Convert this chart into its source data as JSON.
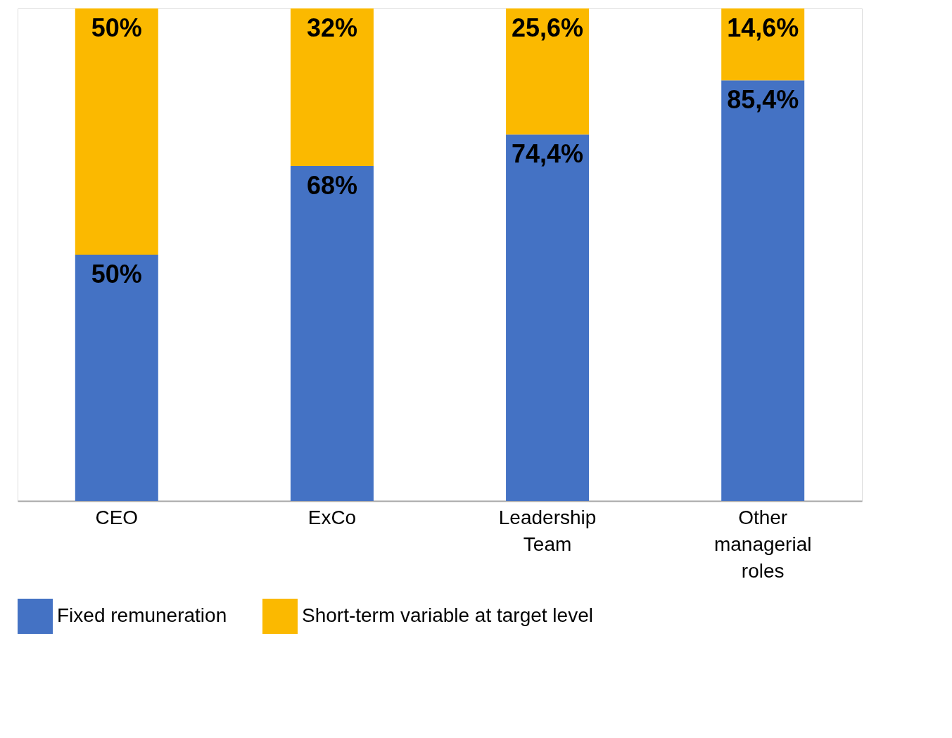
{
  "chart_data": {
    "type": "bar",
    "stacked": true,
    "categories": [
      "CEO",
      "ExCo",
      "Leadership Team",
      "Other managerial roles"
    ],
    "series": [
      {
        "name": "Fixed remuneration",
        "color": "#4472c4",
        "values": [
          50,
          68,
          74.4,
          85.4
        ],
        "value_labels": [
          "50%",
          "68%",
          "74,4%",
          "85,4%"
        ]
      },
      {
        "name": "Short-term variable at target level",
        "color": "#fbb900",
        "values": [
          50,
          32,
          25.6,
          14.6
        ],
        "value_labels": [
          "50%",
          "32%",
          "25,6%",
          "14,6%"
        ]
      }
    ],
    "ylim": [
      0,
      100
    ],
    "tick_labels": "x",
    "legend": "bottom"
  }
}
